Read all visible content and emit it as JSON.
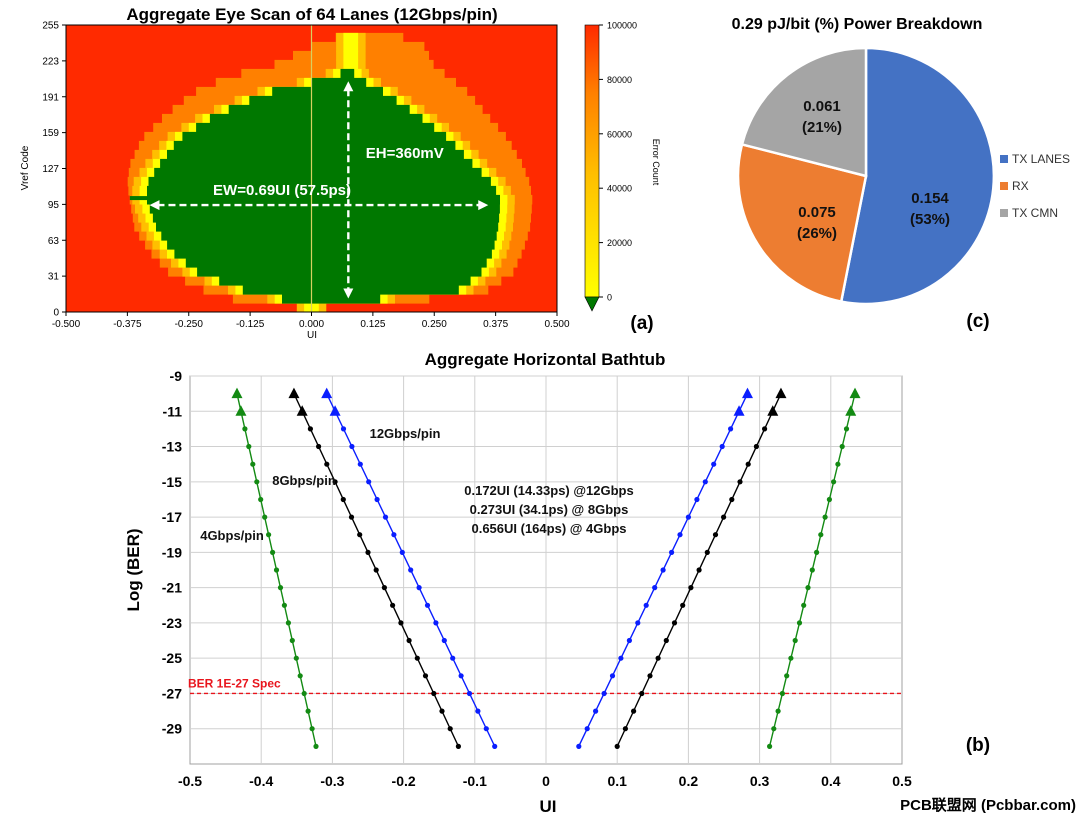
{
  "colors": {
    "red": "#ff2a00",
    "orange": "#ff8000",
    "amber": "#ffbf00",
    "yellow": "#ffff00",
    "green": "#007800",
    "tx_lanes": "#4472c4",
    "rx": "#ed7d31",
    "tx_cmn": "#a5a5a5",
    "bath_4g": "#138a13",
    "bath_8g": "#000000",
    "bath_12g": "#0a1eff",
    "spec": "#e8141c",
    "watermark": "#e00000"
  },
  "panels": {
    "a": "(a)",
    "b": "(b)",
    "c": "(c)"
  },
  "watermark": "PCB联盟网 (Pcbbar.com)",
  "chart_data": [
    {
      "id": "eye",
      "type": "heatmap",
      "title": "Aggregate Eye Scan of 64 Lanes (12Gbps/pin)",
      "xlabel": "UI",
      "ylabel": "Vref Code",
      "xlim": [
        -0.5,
        0.5
      ],
      "ylim": [
        0,
        255
      ],
      "xticks": [
        "-0.500",
        "-0.375",
        "-0.250",
        "-0.125",
        "0.000",
        "0.125",
        "0.250",
        "0.375",
        "0.500"
      ],
      "yticks": [
        "0",
        "31",
        "63",
        "95",
        "127",
        "159",
        "191",
        "223",
        "255"
      ],
      "colorbar": {
        "label": "Error Count",
        "ticks": [
          "0",
          "20000",
          "40000",
          "60000",
          "80000",
          "100000"
        ],
        "range": [
          0,
          100000
        ]
      },
      "eye_profile": [
        {
          "vref": 0,
          "inner": [
            0.0,
            0.0
          ],
          "mid": [
            0.0,
            0.0
          ]
        },
        {
          "vref": 8,
          "inner": [
            -0.06,
            0.14
          ],
          "mid": [
            -0.16,
            0.24
          ]
        },
        {
          "vref": 16,
          "inner": [
            -0.14,
            0.3
          ],
          "mid": [
            -0.22,
            0.36
          ]
        },
        {
          "vref": 31,
          "inner": [
            -0.23,
            0.345
          ],
          "mid": [
            -0.29,
            0.41
          ]
        },
        {
          "vref": 50,
          "inner": [
            -0.285,
            0.37
          ],
          "mid": [
            -0.33,
            0.43
          ]
        },
        {
          "vref": 70,
          "inner": [
            -0.315,
            0.38
          ],
          "mid": [
            -0.36,
            0.445
          ]
        },
        {
          "vref": 95,
          "inner": [
            -0.335,
            0.385
          ],
          "mid": [
            -0.37,
            0.45
          ]
        },
        {
          "vref": 110,
          "inner": [
            -0.335,
            0.37
          ],
          "mid": [
            -0.375,
            0.445
          ]
        },
        {
          "vref": 127,
          "inner": [
            -0.31,
            0.33
          ],
          "mid": [
            -0.37,
            0.43
          ]
        },
        {
          "vref": 150,
          "inner": [
            -0.27,
            0.28
          ],
          "mid": [
            -0.345,
            0.4
          ]
        },
        {
          "vref": 170,
          "inner": [
            -0.2,
            0.22
          ],
          "mid": [
            -0.3,
            0.36
          ]
        },
        {
          "vref": 191,
          "inner": [
            -0.09,
            0.15
          ],
          "mid": [
            -0.24,
            0.32
          ]
        },
        {
          "vref": 205,
          "inner": [
            0.05,
            0.09
          ],
          "mid": [
            -0.17,
            0.28
          ]
        },
        {
          "vref": 215,
          "inner": [
            0.08,
            0.08
          ],
          "mid": [
            -0.08,
            0.25
          ]
        },
        {
          "vref": 232,
          "inner": [
            0.08,
            0.08
          ],
          "mid": [
            0.0,
            0.23
          ]
        },
        {
          "vref": 245,
          "inner": [
            0.08,
            0.08
          ],
          "mid": [
            0.08,
            0.16
          ]
        }
      ],
      "annotations": [
        {
          "text": "EH=360mV",
          "x": 0.19,
          "y": 137
        },
        {
          "text": "EW=0.69UI (57.5ps)",
          "x": -0.06,
          "y": 104
        }
      ],
      "ew_arrow": {
        "x0": -0.33,
        "x1": 0.36,
        "y": 95
      },
      "eh_arrow": {
        "x": 0.075,
        "y0": 12,
        "y1": 205
      }
    },
    {
      "id": "power",
      "type": "pie",
      "title": "0.29 pJ/bit (%) Power Breakdown",
      "slices": [
        {
          "label": "TX LANES",
          "value": 0.154,
          "percent": 53,
          "value_text": "0.154",
          "percent_text": "(53%)"
        },
        {
          "label": "RX",
          "value": 0.075,
          "percent": 26,
          "value_text": "0.075",
          "percent_text": "(26%)"
        },
        {
          "label": "TX CMN",
          "value": 0.061,
          "percent": 21,
          "value_text": "0.061",
          "percent_text": "(21%)"
        }
      ]
    },
    {
      "id": "bathtub",
      "type": "line",
      "title": "Aggregate Horizontal Bathtub",
      "xlabel": "UI",
      "ylabel": "Log (BER)",
      "xlim": [
        -0.5,
        0.5
      ],
      "ylim": [
        -31,
        -9
      ],
      "xticks": [
        "-0.5",
        "-0.4",
        "-0.3",
        "-0.2",
        "-0.1",
        "0",
        "0.1",
        "0.2",
        "0.3",
        "0.4",
        "0.5"
      ],
      "yticks": [
        "-9",
        "-11",
        "-13",
        "-15",
        "-17",
        "-19",
        "-21",
        "-23",
        "-25",
        "-27",
        "-29"
      ],
      "series": [
        {
          "name": "4Gbps/pin",
          "left": [
            [
              -0.434,
              -10
            ],
            [
              -0.323,
              -30
            ]
          ],
          "right": [
            [
              0.434,
              -10
            ],
            [
              0.314,
              -30
            ]
          ]
        },
        {
          "name": "8Gbps/pin",
          "left": [
            [
              -0.354,
              -10
            ],
            [
              -0.123,
              -30
            ]
          ],
          "right": [
            [
              0.33,
              -10
            ],
            [
              0.1,
              -30
            ]
          ]
        },
        {
          "name": "12Gbps/pin",
          "left": [
            [
              -0.308,
              -10
            ],
            [
              -0.072,
              -30
            ]
          ],
          "right": [
            [
              0.283,
              -10
            ],
            [
              0.046,
              -30
            ]
          ]
        }
      ],
      "spec_line": {
        "label": "BER 1E-27 Spec",
        "y": -27
      },
      "notes": [
        "0.172UI (14.33ps) @12Gbps",
        "0.273UI (34.1ps) @ 8Gbps",
        "0.656UI (164ps) @ 4Gbps"
      ]
    }
  ]
}
